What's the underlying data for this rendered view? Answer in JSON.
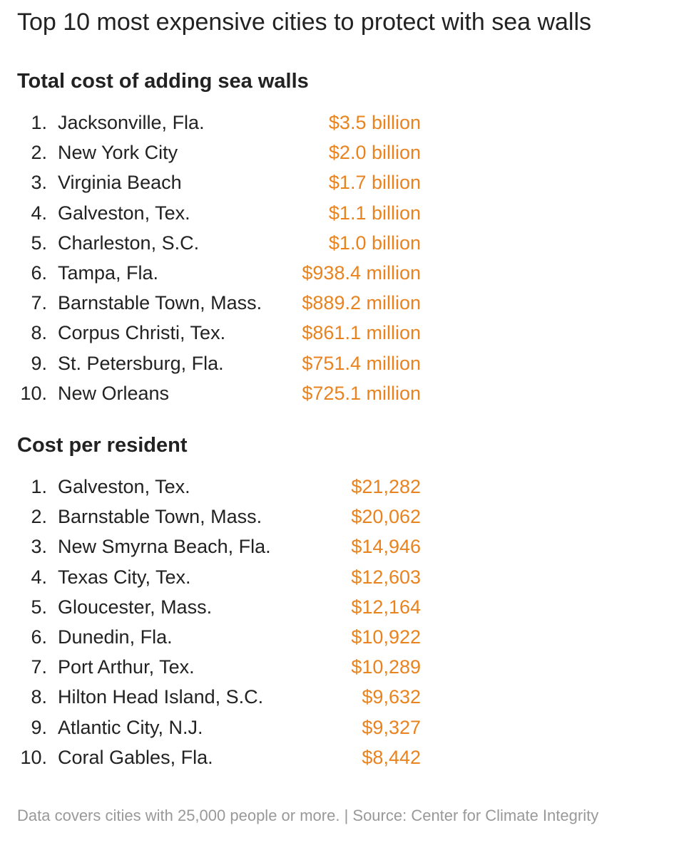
{
  "header": {
    "title": "Top 10 most expensive cities to protect with sea walls"
  },
  "sections": [
    {
      "heading": "Total cost of adding sea walls",
      "rows": [
        [
          "1.",
          "Jacksonville, Fla.",
          "$3.5 billion"
        ],
        [
          "2.",
          "New York City",
          "$2.0 billion"
        ],
        [
          "3.",
          "Virginia Beach",
          "$1.7 billion"
        ],
        [
          "4.",
          "Galveston, Tex.",
          "$1.1 billion"
        ],
        [
          "5.",
          "Charleston, S.C.",
          "$1.0 billion"
        ],
        [
          "6.",
          "Tampa, Fla.",
          "$938.4 million"
        ],
        [
          "7.",
          "Barnstable Town, Mass.",
          "$889.2 million"
        ],
        [
          "8.",
          "Corpus Christi, Tex.",
          "$861.1 million"
        ],
        [
          "9.",
          "St. Petersburg, Fla.",
          "$751.4 million"
        ],
        [
          "10.",
          "New Orleans",
          "$725.1 million"
        ]
      ]
    },
    {
      "heading": "Cost per resident",
      "rows": [
        [
          "1.",
          "Galveston, Tex.",
          "$21,282"
        ],
        [
          "2.",
          "Barnstable Town, Mass.",
          "$20,062"
        ],
        [
          "3.",
          "New Smyrna Beach, Fla.",
          "$14,946"
        ],
        [
          "4.",
          "Texas City, Tex.",
          "$12,603"
        ],
        [
          "5.",
          "Gloucester, Mass.",
          "$12,164"
        ],
        [
          "6.",
          "Dunedin, Fla.",
          "$10,922"
        ],
        [
          "7.",
          "Port Arthur, Tex.",
          "$10,289"
        ],
        [
          "8.",
          "Hilton Head Island, S.C.",
          "$9,632"
        ],
        [
          "9.",
          "Atlantic City, N.J.",
          "$9,327"
        ],
        [
          "10.",
          "Coral Gables, Fla.",
          "$8,442"
        ]
      ]
    }
  ],
  "footer": {
    "note": "Data covers cities with 25,000 people or more. | Source: Center for Climate Integrity"
  }
}
